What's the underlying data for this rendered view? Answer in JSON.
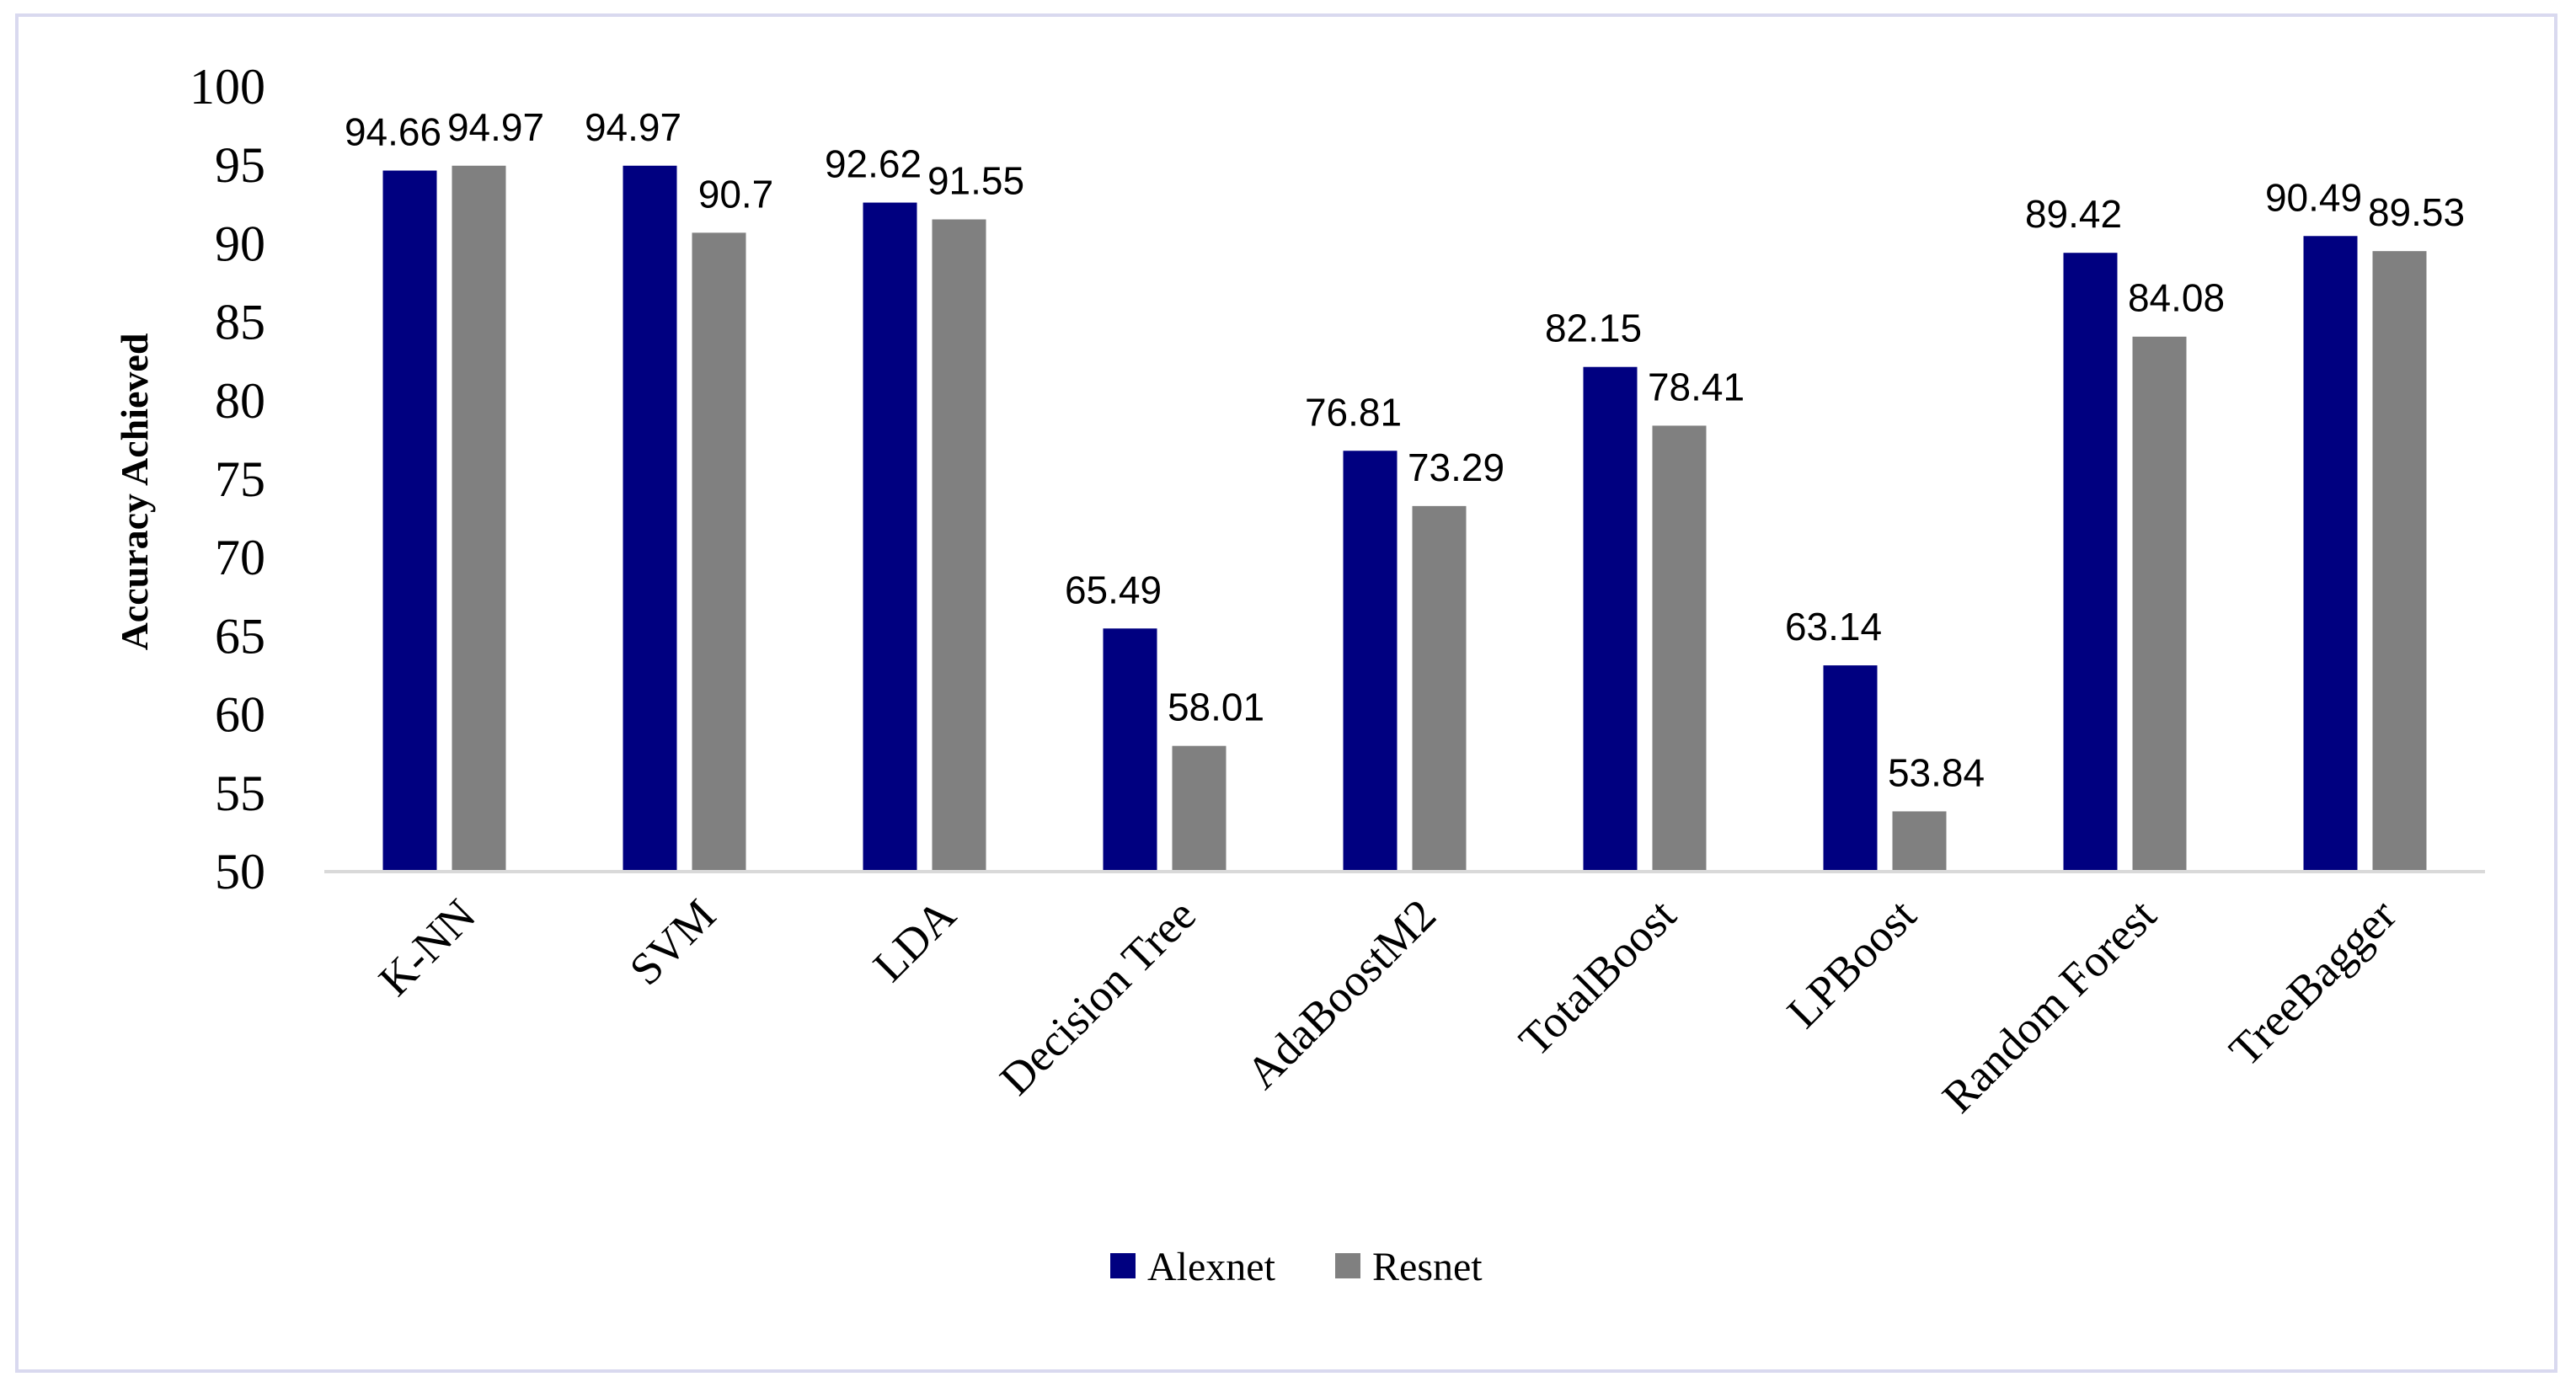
{
  "chart_data": {
    "type": "bar",
    "title": "",
    "xlabel": "",
    "ylabel": "Accuracy Achieved",
    "ylim": [
      50,
      100
    ],
    "yticks": [
      50,
      55,
      60,
      65,
      70,
      75,
      80,
      85,
      90,
      95,
      100
    ],
    "grid": false,
    "legend_position": "bottom",
    "categories": [
      "K-NN",
      "SVM",
      "LDA",
      "Decision Tree",
      "AdaBoostM2",
      "TotalBoost",
      "LPBoost",
      "Random Forest",
      "TreeBagger"
    ],
    "series": [
      {
        "name": "Alexnet",
        "color": "#000080",
        "values": [
          94.66,
          94.97,
          92.62,
          65.49,
          76.81,
          82.15,
          63.14,
          89.42,
          90.49
        ],
        "labels": [
          "94.66",
          "94.97",
          "92.62",
          "65.49",
          "76.81",
          "82.15",
          "63.14",
          "89.42",
          "90.49"
        ]
      },
      {
        "name": "Resnet",
        "color": "#808080",
        "values": [
          94.97,
          90.7,
          91.55,
          58.01,
          73.29,
          78.41,
          53.84,
          84.08,
          89.53
        ],
        "labels": [
          "94.97",
          "90.7",
          "91.55",
          "58.01",
          "73.29",
          "78.41",
          "53.84",
          "84.08",
          "89.53"
        ]
      }
    ]
  }
}
